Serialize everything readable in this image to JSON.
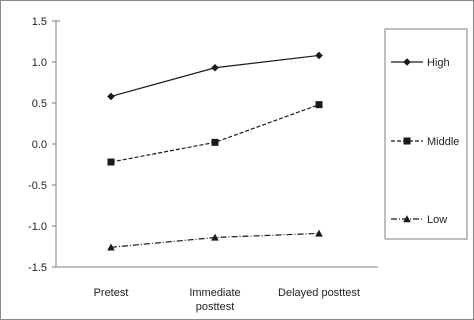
{
  "chart_data": {
    "type": "line",
    "categories": [
      [
        "Pretest"
      ],
      [
        "Immediate",
        "posttest"
      ],
      [
        "Delayed posttest"
      ]
    ],
    "ylim": [
      -1.5,
      1.5
    ],
    "yticks": [
      "1.5",
      "1.0",
      "0.5",
      "0.0",
      "-0.5",
      "-1.0",
      "-1.5"
    ],
    "ytick_values": [
      1.5,
      1.0,
      0.5,
      0.0,
      -0.5,
      -1.0,
      -1.5
    ],
    "grid": false,
    "legend_position": "right",
    "series": [
      {
        "name": "High",
        "values": [
          0.58,
          0.93,
          1.08
        ],
        "marker": "diamond",
        "dash": "solid"
      },
      {
        "name": "Middle",
        "values": [
          -0.22,
          0.02,
          0.48
        ],
        "marker": "square",
        "dash": "dashed"
      },
      {
        "name": "Low",
        "values": [
          -1.26,
          -1.14,
          -1.09
        ],
        "marker": "triangle",
        "dash": "dashdot"
      }
    ],
    "line_color": "#1a1a1a"
  }
}
